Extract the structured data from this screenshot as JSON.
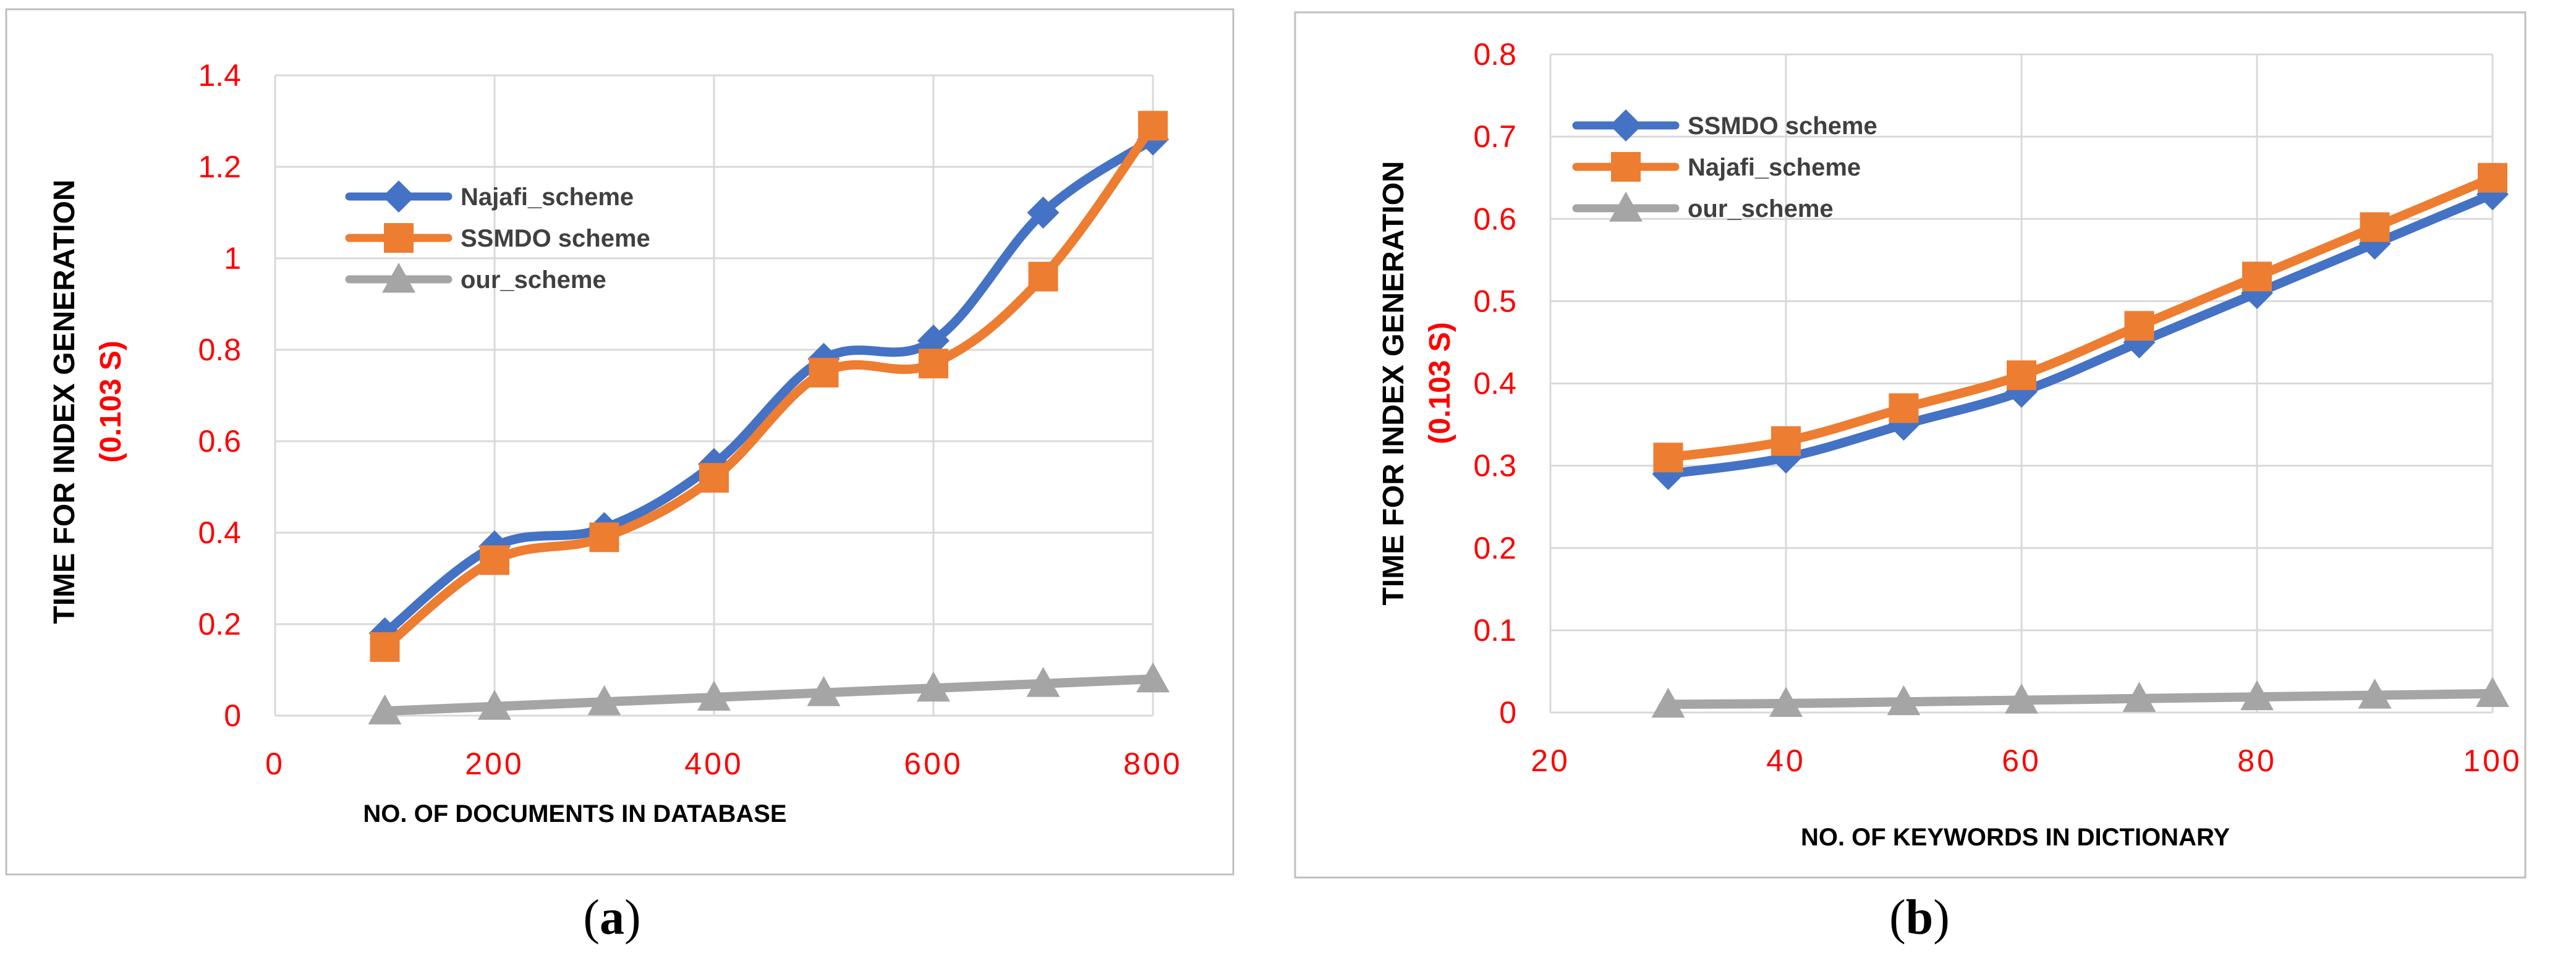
{
  "colors": {
    "series_blue": "#4472C4",
    "series_orange": "#ED7D31",
    "series_gray": "#A5A5A5",
    "tick_red": "#FF0000",
    "axis_title": "#000000",
    "legend_text": "#404040",
    "grid": "#D9D9D9",
    "frame": "#BFBFBF"
  },
  "chart_data": [
    {
      "id": "a",
      "sublabel": "a",
      "type": "line",
      "title": "",
      "xlabel": "NO. OF DOCUMENTS IN DATABASE",
      "ylabel_main": "TIME  FOR INDEX GENERATION",
      "ylabel_sub": "(0.103 S)",
      "xlim": [
        0,
        800
      ],
      "ylim": [
        0,
        1.4
      ],
      "xticks": [
        0,
        200,
        400,
        600,
        800
      ],
      "xtick_labels": [
        "0",
        "200",
        "400",
        "600",
        "800"
      ],
      "yticks": [
        0,
        0.2,
        0.4,
        0.6,
        0.8,
        1,
        1.2,
        1.4
      ],
      "ytick_labels": [
        "0",
        "0.2",
        "0.4",
        "0.6",
        "0.8",
        "1",
        "1.2",
        "1.4"
      ],
      "grid": true,
      "legend_position": "upper-left",
      "series": [
        {
          "name": "Najafi_scheme",
          "color": "#4472C4",
          "marker": "diamond",
          "x": [
            100,
            200,
            300,
            400,
            500,
            600,
            700,
            800
          ],
          "values": [
            0.18,
            0.37,
            0.41,
            0.55,
            0.78,
            0.82,
            1.1,
            1.26
          ]
        },
        {
          "name": "SSMDO scheme",
          "color": "#ED7D31",
          "marker": "square",
          "x": [
            100,
            200,
            300,
            400,
            500,
            600,
            700,
            800
          ],
          "values": [
            0.15,
            0.34,
            0.39,
            0.52,
            0.75,
            0.77,
            0.96,
            1.29
          ]
        },
        {
          "name": "our_scheme",
          "color": "#A5A5A5",
          "marker": "triangle",
          "x": [
            100,
            200,
            300,
            400,
            500,
            600,
            700,
            800
          ],
          "values": [
            0.01,
            0.02,
            0.03,
            0.04,
            0.05,
            0.06,
            0.07,
            0.08
          ]
        }
      ]
    },
    {
      "id": "b",
      "sublabel": "b",
      "type": "line",
      "title": "",
      "xlabel": "NO. OF KEYWORDS IN DICTIONARY",
      "ylabel_main": "TIME FOR INDEX GENERATION",
      "ylabel_sub": "(0.103 S)",
      "xlim": [
        20,
        100
      ],
      "ylim": [
        0,
        0.8
      ],
      "xticks": [
        20,
        40,
        60,
        80,
        100
      ],
      "xtick_labels": [
        "20",
        "40",
        "60",
        "80",
        "100"
      ],
      "yticks": [
        0,
        0.1,
        0.2,
        0.3,
        0.4,
        0.5,
        0.6,
        0.7,
        0.8
      ],
      "ytick_labels": [
        "0",
        "0.1",
        "0.2",
        "0.3",
        "0.4",
        "0.5",
        "0.6",
        "0.7",
        "0.8"
      ],
      "grid": true,
      "legend_position": "upper-left",
      "series": [
        {
          "name": "SSMDO scheme",
          "color": "#4472C4",
          "marker": "diamond",
          "x": [
            30,
            40,
            50,
            60,
            70,
            80,
            90,
            100
          ],
          "values": [
            0.29,
            0.31,
            0.35,
            0.39,
            0.45,
            0.51,
            0.57,
            0.63
          ]
        },
        {
          "name": "Najafi_scheme",
          "color": "#ED7D31",
          "marker": "square",
          "x": [
            30,
            40,
            50,
            60,
            70,
            80,
            90,
            100
          ],
          "values": [
            0.31,
            0.33,
            0.37,
            0.41,
            0.47,
            0.53,
            0.59,
            0.65
          ]
        },
        {
          "name": "our_scheme",
          "color": "#A5A5A5",
          "marker": "triangle",
          "x": [
            30,
            40,
            50,
            60,
            70,
            80,
            90,
            100
          ],
          "values": [
            0.01,
            0.011,
            0.013,
            0.015,
            0.017,
            0.019,
            0.021,
            0.023
          ]
        }
      ]
    }
  ]
}
